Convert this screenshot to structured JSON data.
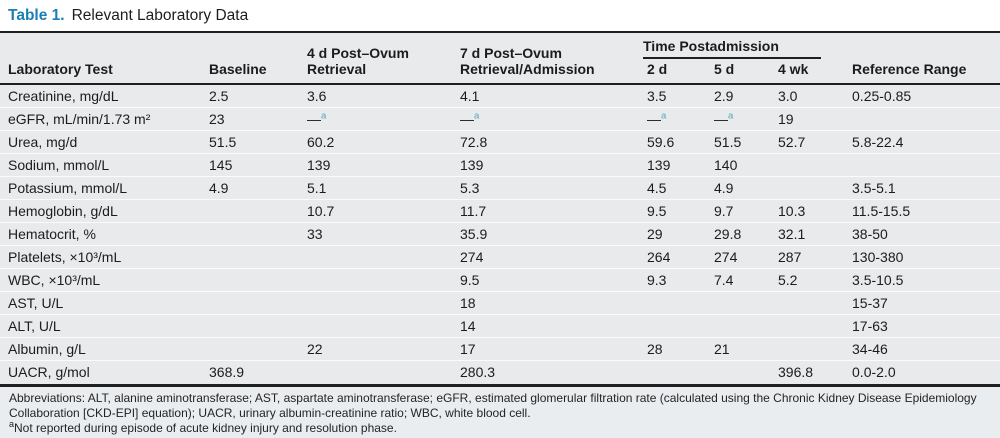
{
  "title": {
    "label": "Table 1.",
    "text": "Relevant Laboratory Data"
  },
  "colors": {
    "title_blue": "#1b7eb4",
    "footnote_marker_teal": "#56a4b6"
  },
  "table": {
    "header": {
      "lab_test": "Laboratory Test",
      "baseline": "Baseline",
      "post4": "4 d Post–Ovum Retrieval",
      "post7": "7 d Post–Ovum Retrieval/Admission",
      "group": "Time Postadmission",
      "sub": [
        "2 d",
        "5 d",
        "4 wk"
      ],
      "ref": "Reference Range"
    },
    "rows": [
      {
        "label": "Creatinine, mg/dL",
        "values": [
          "2.5",
          "3.6",
          "4.1",
          "3.5",
          "2.9",
          "3.0",
          "0.25-0.85"
        ]
      },
      {
        "label": "eGFR, mL/min/1.73 m²",
        "values": [
          "23",
          "—ᵃ",
          "—ᵃ",
          "—ᵃ",
          "—ᵃ",
          "19",
          ""
        ]
      },
      {
        "label": "Urea, mg/d",
        "values": [
          "51.5",
          "60.2",
          "72.8",
          "59.6",
          "51.5",
          "52.7",
          "5.8-22.4"
        ]
      },
      {
        "label": "Sodium, mmol/L",
        "values": [
          "145",
          "139",
          "139",
          "139",
          "140",
          "",
          ""
        ]
      },
      {
        "label": "Potassium, mmol/L",
        "values": [
          "4.9",
          "5.1",
          "5.3",
          "4.5",
          "4.9",
          "",
          "3.5-5.1"
        ]
      },
      {
        "label": "Hemoglobin, g/dL",
        "values": [
          "",
          "10.7",
          "11.7",
          "9.5",
          "9.7",
          "10.3",
          "11.5-15.5"
        ]
      },
      {
        "label": "Hematocrit, %",
        "values": [
          "",
          "33",
          "35.9",
          "29",
          "29.8",
          "32.1",
          "38-50"
        ]
      },
      {
        "label": "Platelets, ×10³/mL",
        "values": [
          "",
          "",
          "274",
          "264",
          "274",
          "287",
          "130-380"
        ]
      },
      {
        "label": "WBC, ×10³/mL",
        "values": [
          "",
          "",
          "9.5",
          "9.3",
          "7.4",
          "5.2",
          "3.5-10.5"
        ]
      },
      {
        "label": "AST, U/L",
        "values": [
          "",
          "",
          "18",
          "",
          "",
          "",
          "15-37"
        ]
      },
      {
        "label": "ALT, U/L",
        "values": [
          "",
          "",
          "14",
          "",
          "",
          "",
          "17-63"
        ]
      },
      {
        "label": "Albumin, g/L",
        "values": [
          "",
          "22",
          "17",
          "28",
          "21",
          "",
          "34-46"
        ]
      },
      {
        "label": "UACR, g/mol",
        "values": [
          "368.9",
          "",
          "280.3",
          "",
          "",
          "396.8",
          "0.0-2.0"
        ]
      }
    ]
  },
  "footnotes": {
    "abbreviations": "Abbreviations: ALT, alanine aminotransferase; AST, aspartate aminotransferase; eGFR, estimated glomerular filtration rate (calculated using the Chronic Kidney Disease Epidemiology Collaboration [CKD-EPI] equation); UACR, urinary albumin-creatinine ratio; WBC, white blood cell.",
    "note_marker": "a",
    "note_text": "Not reported during episode of acute kidney injury and resolution phase."
  }
}
